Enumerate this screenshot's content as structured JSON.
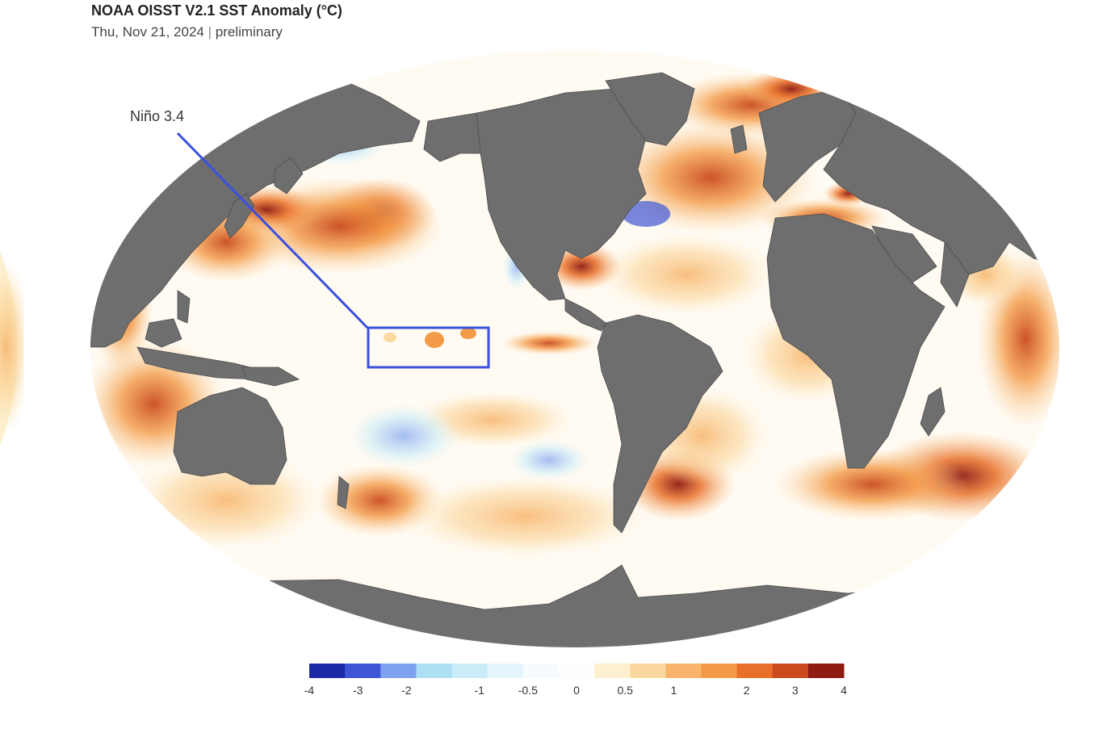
{
  "header": {
    "title": "NOAA OISST V2.1 SST Anomaly (°C)",
    "date": "Thu, Nov 21, 2024",
    "separator": "|",
    "status": "preliminary"
  },
  "map": {
    "projection": "robinson",
    "land_color": "#6e6e6e",
    "ocean_color": "#ffffff",
    "annotation": {
      "label": "Niño 3.4",
      "box_color": "#3b4fe0"
    }
  },
  "legend": {
    "colors": [
      "#1c2aa8",
      "#3f56d4",
      "#7fa2f0",
      "#aee0f5",
      "#c9ecf9",
      "#e4f6fc",
      "#f6fbfd",
      "#fefefe",
      "#fdf0cf",
      "#fbd8a0",
      "#f7b46a",
      "#f39a47",
      "#e8702a",
      "#c94b1e",
      "#8f1c12"
    ],
    "ticks": [
      {
        "label": "-4",
        "pos": 0
      },
      {
        "label": "-3",
        "pos": 1
      },
      {
        "label": "-2",
        "pos": 2
      },
      {
        "label": "-1",
        "pos": 3.5
      },
      {
        "label": "-0.5",
        "pos": 4.5
      },
      {
        "label": "0",
        "pos": 5.5
      },
      {
        "label": "0.5",
        "pos": 6.5
      },
      {
        "label": "1",
        "pos": 7.5
      },
      {
        "label": "2",
        "pos": 9
      },
      {
        "label": "3",
        "pos": 10
      },
      {
        "label": "4",
        "pos": 11
      }
    ]
  }
}
